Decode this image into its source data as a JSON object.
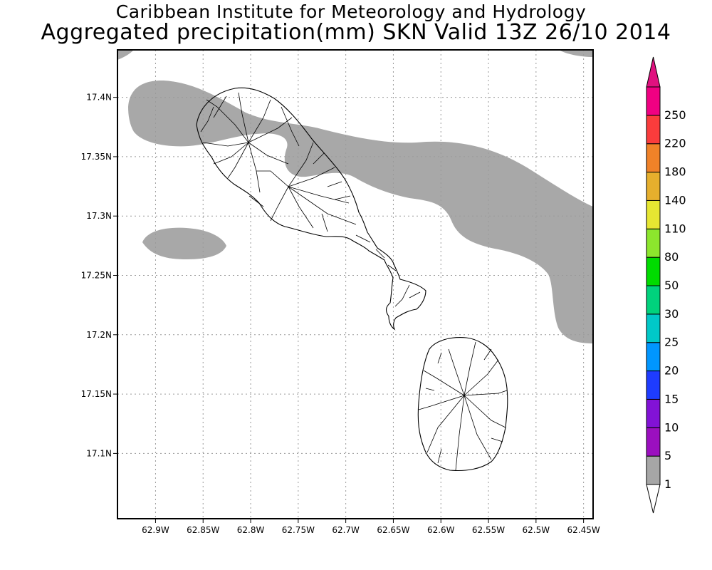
{
  "title": {
    "line1": "Caribbean Institute for Meteorology and Hydrology",
    "line2": "Aggregated precipitation(mm) SKN Valid 13Z 26/10 2014"
  },
  "map": {
    "lon_range": [
      -62.94,
      -62.44
    ],
    "lat_range": [
      17.045,
      17.44
    ],
    "grid": true,
    "x_ticks": [
      {
        "lon": -62.9,
        "label": "62.9W"
      },
      {
        "lon": -62.85,
        "label": "62.85W"
      },
      {
        "lon": -62.8,
        "label": "62.8W"
      },
      {
        "lon": -62.75,
        "label": "62.75W"
      },
      {
        "lon": -62.7,
        "label": "62.7W"
      },
      {
        "lon": -62.65,
        "label": "62.65W"
      },
      {
        "lon": -62.6,
        "label": "62.6W"
      },
      {
        "lon": -62.55,
        "label": "62.55W"
      },
      {
        "lon": -62.5,
        "label": "62.5W"
      },
      {
        "lon": -62.45,
        "label": "62.45W"
      }
    ],
    "y_ticks": [
      {
        "lat": 17.4,
        "label": "17.4N"
      },
      {
        "lat": 17.35,
        "label": "17.35N"
      },
      {
        "lat": 17.3,
        "label": "17.3N"
      },
      {
        "lat": 17.25,
        "label": "17.25N"
      },
      {
        "lat": 17.2,
        "label": "17.2N"
      },
      {
        "lat": 17.15,
        "label": "17.15N"
      },
      {
        "lat": 17.1,
        "label": "17.1N"
      }
    ],
    "precip_color": "#a8a8a8",
    "outline_color": "#000000"
  },
  "colorbar": {
    "levels": [
      {
        "label": "1",
        "color": "#a6a6a6"
      },
      {
        "label": "5",
        "color": "#9b0fbf"
      },
      {
        "label": "10",
        "color": "#8212d6"
      },
      {
        "label": "15",
        "color": "#1e3cff"
      },
      {
        "label": "20",
        "color": "#0096ff"
      },
      {
        "label": "25",
        "color": "#00c8c8"
      },
      {
        "label": "30",
        "color": "#00d27d"
      },
      {
        "label": "50",
        "color": "#00dc00"
      },
      {
        "label": "80",
        "color": "#8ce62d"
      },
      {
        "label": "110",
        "color": "#e6e632"
      },
      {
        "label": "140",
        "color": "#e6af2d"
      },
      {
        "label": "180",
        "color": "#f08228"
      },
      {
        "label": "220",
        "color": "#fa3c3c"
      },
      {
        "label": "250",
        "color": "#f00082"
      }
    ],
    "top_arrow_color": "#e0117f",
    "bottom_arrow_color": "#ffffff"
  }
}
